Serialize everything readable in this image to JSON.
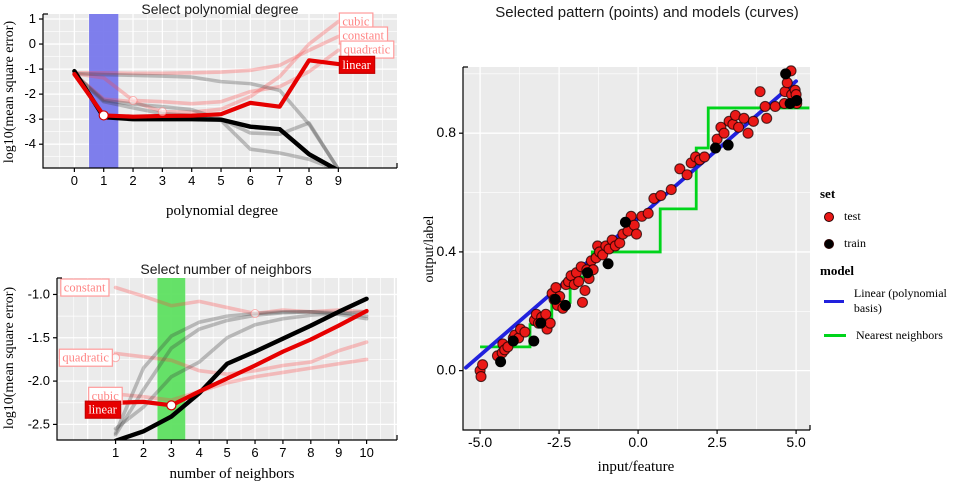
{
  "colors": {
    "test_point": "#ea1917",
    "train_point": "#000000",
    "linear_model_line": "#2121dd",
    "nn_model_line": "#00d41b",
    "selected_red": "#e60000",
    "faded_red": "#ff9b9b",
    "degree_band": "#7474ec",
    "neighbors_band": "#59df5c",
    "panel_bg": "#ebebeb"
  },
  "chart_data": [
    {
      "id": "degree",
      "type": "line",
      "title": "Select polynomial degree",
      "xlabel": "polynomial degree",
      "ylabel": "log10(mean square error)",
      "x_tick_values": [
        0,
        1,
        2,
        3,
        4,
        5,
        6,
        7,
        8,
        9
      ],
      "x_tick_labels": [
        "0",
        "1",
        "2",
        "3",
        "4",
        "5",
        "6",
        "7",
        "8",
        "9"
      ],
      "y_tick_values": [
        1,
        0,
        -1,
        -2,
        -3,
        -4
      ],
      "y_tick_labels": [
        "1",
        "0",
        "-1",
        "-2",
        "-3",
        "-4"
      ],
      "xlim": [
        -1.07,
        11.0
      ],
      "ylim": [
        -4.95,
        1.2
      ],
      "selected_value": 1,
      "band": {
        "from": 0.5,
        "to": 1.5
      },
      "selected_point": {
        "x": 1,
        "y": -2.85
      },
      "faded_dots": [
        [
          2,
          -2.25
        ],
        [
          3,
          -2.7
        ]
      ],
      "x": [
        0,
        1,
        2,
        3,
        4,
        5,
        6,
        7,
        8,
        9
      ],
      "series": [
        {
          "name": "constant test",
          "role": "faded-test",
          "values": [
            -1.15,
            -1.15,
            -1.17,
            -1.17,
            -1.15,
            -1.12,
            -1.05,
            -0.85,
            -0.25,
            0.3
          ]
        },
        {
          "name": "quadratic test",
          "role": "faded-test",
          "values": [
            -1.18,
            -1.35,
            -2.25,
            -2.3,
            -2.38,
            -2.3,
            -1.9,
            -1.7,
            -1.1,
            -0.25
          ]
        },
        {
          "name": "cubic test",
          "role": "faded-test",
          "values": [
            -1.2,
            -2.2,
            -2.3,
            -2.7,
            -2.72,
            -2.6,
            -2.1,
            -1.3,
            0.0,
            0.9
          ]
        },
        {
          "name": "constant train",
          "role": "faded-train",
          "values": [
            -1.18,
            -1.22,
            -1.25,
            -1.28,
            -1.32,
            -1.5,
            -1.58,
            -1.85,
            -3.2,
            -5.0
          ]
        },
        {
          "name": "quadratic train",
          "role": "faded-train",
          "values": [
            -1.2,
            -2.25,
            -2.4,
            -2.5,
            -2.62,
            -3.0,
            -3.55,
            -3.6,
            -3.15,
            -5.0
          ]
        },
        {
          "name": "cubic train",
          "role": "faded-train",
          "values": [
            -1.22,
            -2.3,
            -2.55,
            -2.78,
            -2.85,
            -3.05,
            -4.2,
            -4.35,
            -4.6,
            -5.05
          ]
        },
        {
          "name": "linear train",
          "role": "sel-train",
          "values": [
            -1.08,
            -2.92,
            -3.0,
            -3.0,
            -3.0,
            -3.02,
            -3.3,
            -3.4,
            -4.4,
            -5.05
          ]
        },
        {
          "name": "linear test",
          "role": "sel-test",
          "values": [
            -1.2,
            -2.85,
            -2.9,
            -2.87,
            -2.86,
            -2.8,
            -2.35,
            -2.5,
            -0.65,
            -0.8
          ]
        }
      ],
      "labels": [
        {
          "text": "cubic",
          "x": 9.0,
          "y": 0.9,
          "selected": false
        },
        {
          "text": "constant",
          "x": 9.0,
          "y": 0.34,
          "selected": false
        },
        {
          "text": "quadratic",
          "x": 9.05,
          "y": -0.22,
          "selected": false
        },
        {
          "text": "linear",
          "x": 9.0,
          "y": -0.83,
          "selected": true
        }
      ]
    },
    {
      "id": "neighbors",
      "type": "line",
      "title": "Select number of neighbors",
      "xlabel": "number of neighbors",
      "ylabel": "log10(mean square error)",
      "x_tick_values": [
        1,
        2,
        3,
        4,
        5,
        6,
        7,
        8,
        9,
        10
      ],
      "x_tick_labels": [
        "1",
        "2",
        "3",
        "4",
        "5",
        "6",
        "7",
        "8",
        "9",
        "10"
      ],
      "y_tick_values": [
        -1.0,
        -1.5,
        -2.0,
        -2.5
      ],
      "y_tick_labels": [
        "-1.0",
        "-1.5",
        "-2.0",
        "-2.5"
      ],
      "xlim": [
        -1.1,
        11.09
      ],
      "ylim": [
        -2.68,
        -0.81
      ],
      "selected_value": 3,
      "band": {
        "from": 2.5,
        "to": 3.5
      },
      "selected_point": {
        "x": 3,
        "y": -2.28
      },
      "faded_dots": [
        [
          6,
          -1.22
        ],
        [
          1,
          -1.73
        ]
      ],
      "x": [
        1,
        2,
        3,
        4,
        5,
        6,
        7,
        8,
        9,
        10
      ],
      "series": [
        {
          "name": "constant test",
          "role": "faded-test",
          "values": [
            -0.92,
            -1.02,
            -1.13,
            -1.08,
            -1.15,
            -1.22,
            -1.18,
            -1.2,
            -1.18,
            -1.2
          ]
        },
        {
          "name": "quadratic test",
          "role": "faded-test",
          "values": [
            -1.68,
            -1.72,
            -1.76,
            -1.88,
            -1.92,
            -1.88,
            -1.82,
            -1.78,
            -1.65,
            -1.55
          ]
        },
        {
          "name": "cubic test",
          "role": "faded-test",
          "values": [
            -2.15,
            -2.18,
            -2.22,
            -2.12,
            -2.02,
            -1.95,
            -1.9,
            -1.85,
            -1.8,
            -1.75
          ]
        },
        {
          "name": "constant train",
          "role": "faded-train",
          "values": [
            -2.6,
            -1.85,
            -1.48,
            -1.32,
            -1.25,
            -1.22,
            -1.2,
            -1.2,
            -1.21,
            -1.25
          ]
        },
        {
          "name": "quadratic train",
          "role": "faded-train",
          "values": [
            -2.62,
            -2.1,
            -1.62,
            -1.4,
            -1.3,
            -1.24,
            -1.21,
            -1.2,
            -1.23,
            -1.28
          ]
        },
        {
          "name": "cubic train",
          "role": "faded-train",
          "values": [
            -2.55,
            -2.3,
            -1.95,
            -1.78,
            -1.5,
            -1.35,
            -1.28,
            -1.24,
            -1.22,
            -1.2
          ]
        },
        {
          "name": "linear train",
          "role": "sel-train",
          "values": [
            -2.69,
            -2.58,
            -2.41,
            -2.14,
            -1.8,
            -1.66,
            -1.51,
            -1.36,
            -1.2,
            -1.05
          ]
        },
        {
          "name": "linear test",
          "role": "sel-test",
          "values": [
            -2.25,
            -2.24,
            -2.28,
            -2.12,
            -1.97,
            -1.82,
            -1.66,
            -1.52,
            -1.36,
            -1.19
          ]
        }
      ],
      "labels": [
        {
          "text": "constant",
          "x": -1.0,
          "y": -0.92,
          "selected": false
        },
        {
          "text": "quadratic",
          "x": -1.05,
          "y": -1.73,
          "selected": false
        },
        {
          "text": "cubic",
          "x": 0.0,
          "y": -2.17,
          "selected": false
        },
        {
          "text": "linear",
          "x": -0.12,
          "y": -2.33,
          "selected": true
        }
      ]
    },
    {
      "id": "pattern",
      "type": "scatter",
      "title": "Selected pattern (points) and models (curves)",
      "xlabel": "input/feature",
      "ylabel": "output/label",
      "x_tick_values": [
        -5.0,
        -2.5,
        0.0,
        2.5,
        5.0
      ],
      "x_tick_labels": [
        "-5.0",
        "-2.5",
        "0.0",
        "2.5",
        "5.0"
      ],
      "y_tick_values": [
        0.0,
        0.4,
        0.8
      ],
      "y_tick_labels": [
        "0.0",
        "0.4",
        "0.8"
      ],
      "xlim": [
        -5.54,
        5.44
      ],
      "ylim": [
        -0.2,
        1.023
      ],
      "linear_model_line": [
        [
          -5.45,
          0.01
        ],
        [
          5.0,
          0.975
        ]
      ],
      "nn_model_steps": [
        [
          -5.0,
          0.08
        ],
        [
          -3.42,
          0.08
        ],
        [
          -3.42,
          0.155
        ],
        [
          -2.73,
          0.155
        ],
        [
          -2.73,
          0.23
        ],
        [
          -2.15,
          0.23
        ],
        [
          -2.15,
          0.315
        ],
        [
          -1.45,
          0.315
        ],
        [
          -1.45,
          0.4
        ],
        [
          0.7,
          0.4
        ],
        [
          0.7,
          0.545
        ],
        [
          1.84,
          0.545
        ],
        [
          1.84,
          0.75
        ],
        [
          2.22,
          0.75
        ],
        [
          2.22,
          0.885
        ],
        [
          5.42,
          0.885
        ]
      ],
      "points_test": [
        [
          -5.0,
          0.0
        ],
        [
          -4.97,
          -0.02
        ],
        [
          -4.92,
          0.02
        ],
        [
          -4.45,
          0.05
        ],
        [
          -4.3,
          0.06
        ],
        [
          -4.28,
          0.09
        ],
        [
          -4.22,
          0.07
        ],
        [
          -4.12,
          0.08
        ],
        [
          -3.95,
          0.11
        ],
        [
          -3.9,
          0.12
        ],
        [
          -3.78,
          0.11
        ],
        [
          -3.72,
          0.14
        ],
        [
          -3.58,
          0.13
        ],
        [
          -3.28,
          0.17
        ],
        [
          -3.22,
          0.19
        ],
        [
          -3.15,
          0.16
        ],
        [
          -3.05,
          0.18
        ],
        [
          -2.92,
          0.19
        ],
        [
          -2.88,
          0.14
        ],
        [
          -2.78,
          0.16
        ],
        [
          -2.72,
          0.26
        ],
        [
          -2.66,
          0.24
        ],
        [
          -2.6,
          0.28
        ],
        [
          -2.55,
          0.22
        ],
        [
          -2.48,
          0.25
        ],
        [
          -2.38,
          0.21
        ],
        [
          -2.28,
          0.29
        ],
        [
          -2.2,
          0.3
        ],
        [
          -2.12,
          0.32
        ],
        [
          -2.02,
          0.29
        ],
        [
          -1.95,
          0.33
        ],
        [
          -1.88,
          0.3
        ],
        [
          -1.8,
          0.35
        ],
        [
          -1.76,
          0.23
        ],
        [
          -1.68,
          0.27
        ],
        [
          -1.62,
          0.34
        ],
        [
          -1.55,
          0.31
        ],
        [
          -1.48,
          0.37
        ],
        [
          -1.42,
          0.34
        ],
        [
          -1.33,
          0.38
        ],
        [
          -1.28,
          0.42
        ],
        [
          -1.22,
          0.4
        ],
        [
          -1.12,
          0.39
        ],
        [
          -1.02,
          0.42
        ],
        [
          -0.92,
          0.41
        ],
        [
          -0.82,
          0.44
        ],
        [
          -0.72,
          0.42
        ],
        [
          -0.58,
          0.43
        ],
        [
          -0.48,
          0.46
        ],
        [
          -0.32,
          0.47
        ],
        [
          -0.22,
          0.52
        ],
        [
          -0.12,
          0.49
        ],
        [
          -0.05,
          0.46
        ],
        [
          0.12,
          0.52
        ],
        [
          0.32,
          0.53
        ],
        [
          0.5,
          0.58
        ],
        [
          0.72,
          0.59
        ],
        [
          1.05,
          0.61
        ],
        [
          1.32,
          0.68
        ],
        [
          1.55,
          0.66
        ],
        [
          1.68,
          0.7
        ],
        [
          1.82,
          0.72
        ],
        [
          1.95,
          0.71
        ],
        [
          2.1,
          0.72
        ],
        [
          2.5,
          0.78
        ],
        [
          2.62,
          0.82
        ],
        [
          2.72,
          0.8
        ],
        [
          2.88,
          0.84
        ],
        [
          3.0,
          0.83
        ],
        [
          3.08,
          0.86
        ],
        [
          3.18,
          0.82
        ],
        [
          3.35,
          0.85
        ],
        [
          3.48,
          0.8
        ],
        [
          3.65,
          0.84
        ],
        [
          3.86,
          0.94
        ],
        [
          4.02,
          0.89
        ],
        [
          4.34,
          0.89
        ],
        [
          4.07,
          0.85
        ],
        [
          4.63,
          0.9
        ],
        [
          4.65,
          0.94
        ],
        [
          4.86,
          0.93
        ],
        [
          4.97,
          0.945
        ],
        [
          5.02,
          0.9
        ],
        [
          4.84,
          1.01
        ],
        [
          4.72,
          0.97
        ],
        [
          5.0,
          0.93
        ]
      ],
      "points_train": [
        [
          -4.35,
          0.03
        ],
        [
          -3.95,
          0.1
        ],
        [
          -3.3,
          0.1
        ],
        [
          -3.08,
          0.16
        ],
        [
          -2.62,
          0.24
        ],
        [
          -2.3,
          0.22
        ],
        [
          -1.6,
          0.33
        ],
        [
          -0.95,
          0.36
        ],
        [
          -0.4,
          0.5
        ],
        [
          2.45,
          0.75
        ],
        [
          2.85,
          0.76
        ],
        [
          4.67,
          1.0
        ],
        [
          4.81,
          0.9
        ],
        [
          5.02,
          0.91
        ]
      ]
    }
  ],
  "legend": {
    "set_title": "set",
    "set_items": [
      {
        "label": "test",
        "color": "#ea1917"
      },
      {
        "label": "train",
        "color": "#000000"
      }
    ],
    "model_title": "model",
    "model_items": [
      {
        "label": "Linear (polynomial basis)",
        "color": "#2121dd"
      },
      {
        "label": "Nearest neighbors",
        "color": "#00d41b"
      }
    ]
  }
}
